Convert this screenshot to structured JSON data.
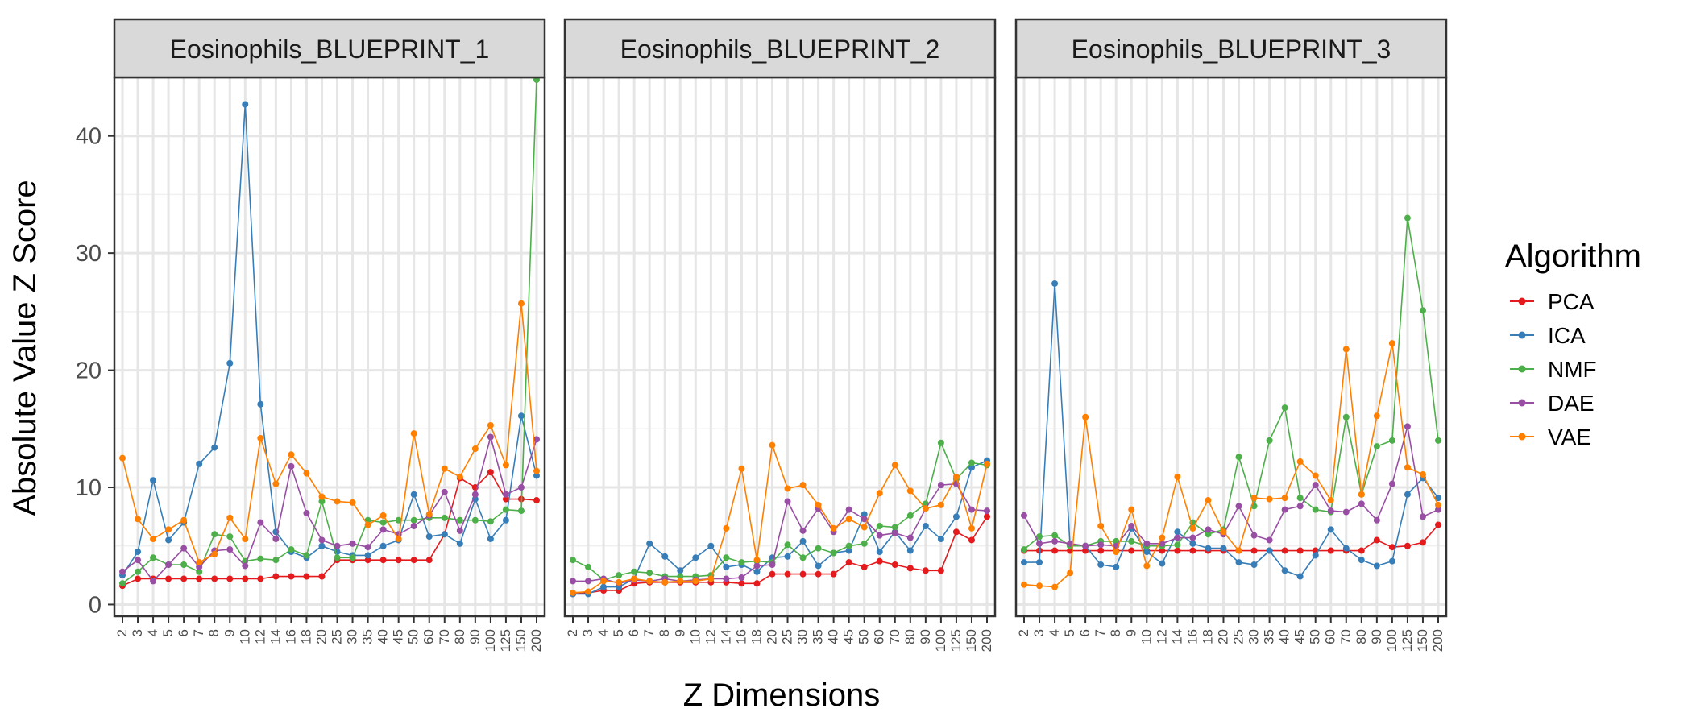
{
  "chart_data": {
    "type": "line",
    "xlabel": "Z Dimensions",
    "ylabel": "Absolute Value Z Score",
    "ylim": [
      -1,
      45
    ],
    "yticks": [
      0,
      10,
      20,
      30,
      40
    ],
    "grid": true,
    "legend_position": "right",
    "legend_title": "Algorithm",
    "categories": [
      "2",
      "3",
      "4",
      "5",
      "6",
      "7",
      "8",
      "9",
      "10",
      "12",
      "14",
      "16",
      "18",
      "20",
      "25",
      "30",
      "35",
      "40",
      "45",
      "50",
      "60",
      "70",
      "80",
      "90",
      "100",
      "125",
      "150",
      "200"
    ],
    "colors": {
      "PCA": "#e41a1c",
      "ICA": "#377eb8",
      "NMF": "#4daf4a",
      "DAE": "#984ea3",
      "VAE": "#ff7f00"
    },
    "panels": [
      {
        "title": "Eosinophils_BLUEPRINT_1",
        "series": [
          {
            "name": "PCA",
            "values": [
              1.6,
              2.2,
              2.2,
              2.2,
              2.2,
              2.2,
              2.2,
              2.2,
              2.2,
              2.2,
              2.4,
              2.4,
              2.4,
              2.4,
              3.8,
              3.8,
              3.8,
              3.8,
              3.8,
              3.8,
              3.8,
              6.0,
              10.8,
              10.0,
              11.3,
              9.0,
              9.0,
              8.9
            ]
          },
          {
            "name": "ICA",
            "values": [
              2.5,
              4.5,
              10.6,
              5.5,
              7.0,
              12.0,
              13.4,
              20.6,
              42.7,
              17.1,
              6.2,
              4.5,
              4.0,
              5.0,
              4.5,
              4.2,
              4.2,
              5.0,
              5.5,
              9.4,
              5.8,
              6.0,
              5.2,
              9.0,
              5.6,
              7.2,
              16.1,
              11.0
            ]
          },
          {
            "name": "NMF",
            "values": [
              1.8,
              2.8,
              4.0,
              3.4,
              3.4,
              2.8,
              6.0,
              5.8,
              3.7,
              3.9,
              3.8,
              4.7,
              4.2,
              8.8,
              4.0,
              4.0,
              7.2,
              7.0,
              7.2,
              7.2,
              7.4,
              7.4,
              7.2,
              7.2,
              7.1,
              8.1,
              8.0,
              44.8
            ]
          },
          {
            "name": "DAE",
            "values": [
              2.8,
              3.8,
              2.0,
              3.4,
              4.8,
              3.2,
              4.6,
              4.7,
              3.3,
              7.0,
              5.6,
              11.8,
              7.8,
              5.5,
              5.0,
              5.2,
              4.9,
              6.4,
              6.0,
              6.7,
              7.6,
              9.6,
              6.3,
              9.4,
              14.3,
              9.4,
              10.0,
              14.1
            ]
          },
          {
            "name": "VAE",
            "values": [
              12.5,
              7.3,
              5.6,
              6.4,
              7.2,
              3.6,
              4.3,
              7.4,
              5.6,
              14.2,
              10.3,
              12.8,
              11.2,
              9.2,
              8.8,
              8.7,
              6.8,
              7.6,
              5.6,
              14.6,
              7.7,
              11.6,
              10.9,
              13.3,
              15.3,
              11.9,
              25.7,
              11.4
            ]
          }
        ]
      },
      {
        "title": "Eosinophils_BLUEPRINT_2",
        "series": [
          {
            "name": "PCA",
            "values": [
              0.9,
              1.0,
              1.2,
              1.2,
              1.8,
              1.9,
              1.9,
              1.9,
              1.9,
              1.9,
              1.9,
              1.8,
              1.8,
              2.6,
              2.6,
              2.6,
              2.6,
              2.6,
              3.6,
              3.2,
              3.7,
              3.4,
              3.1,
              2.9,
              2.9,
              6.2,
              5.5,
              7.5
            ]
          },
          {
            "name": "ICA",
            "values": [
              0.9,
              0.9,
              1.5,
              1.5,
              2.2,
              5.2,
              4.1,
              2.9,
              4.0,
              5.0,
              3.2,
              3.4,
              2.8,
              4.0,
              4.1,
              5.4,
              3.3,
              4.4,
              4.6,
              7.7,
              4.5,
              6.2,
              4.6,
              6.7,
              5.6,
              7.5,
              11.7,
              12.3
            ]
          },
          {
            "name": "NMF",
            "values": [
              3.8,
              3.2,
              2.1,
              2.5,
              2.8,
              2.7,
              2.4,
              2.4,
              2.4,
              2.5,
              4.0,
              3.6,
              3.7,
              3.6,
              5.1,
              4.0,
              4.8,
              4.4,
              5.0,
              5.2,
              6.7,
              6.6,
              7.6,
              8.6,
              13.8,
              10.7,
              12.1,
              11.9
            ]
          },
          {
            "name": "DAE",
            "values": [
              2.0,
              2.0,
              2.2,
              1.8,
              2.1,
              2.0,
              2.2,
              2.0,
              2.1,
              2.2,
              2.2,
              2.3,
              3.3,
              3.4,
              8.8,
              6.3,
              8.2,
              6.2,
              8.1,
              7.3,
              5.9,
              6.1,
              5.7,
              8.2,
              10.2,
              10.3,
              8.1,
              8.0
            ]
          },
          {
            "name": "VAE",
            "values": [
              1.0,
              1.1,
              2.0,
              1.9,
              2.2,
              2.0,
              1.9,
              2.0,
              2.0,
              2.2,
              6.5,
              11.6,
              3.8,
              13.6,
              9.9,
              10.2,
              8.5,
              6.5,
              7.3,
              6.6,
              9.5,
              11.9,
              9.7,
              8.2,
              8.5,
              10.9,
              6.5,
              12.0
            ]
          }
        ]
      },
      {
        "title": "Eosinophils_BLUEPRINT_3",
        "series": [
          {
            "name": "PCA",
            "values": [
              4.6,
              4.6,
              4.6,
              4.6,
              4.6,
              4.6,
              4.6,
              4.6,
              4.6,
              4.6,
              4.6,
              4.6,
              4.6,
              4.6,
              4.6,
              4.6,
              4.6,
              4.6,
              4.6,
              4.6,
              4.6,
              4.6,
              4.6,
              5.5,
              4.9,
              5.0,
              5.3,
              6.8
            ]
          },
          {
            "name": "ICA",
            "values": [
              3.6,
              3.6,
              27.4,
              5.0,
              5.0,
              3.4,
              3.2,
              6.5,
              4.5,
              3.5,
              6.2,
              5.2,
              4.8,
              4.8,
              3.6,
              3.4,
              4.6,
              2.9,
              2.4,
              4.2,
              6.4,
              4.8,
              3.8,
              3.3,
              3.7,
              9.4,
              10.8,
              9.1
            ]
          },
          {
            "name": "NMF",
            "values": [
              4.7,
              5.8,
              5.9,
              5.0,
              5.0,
              5.4,
              5.4,
              5.4,
              5.0,
              5.0,
              5.1,
              7.0,
              6.0,
              6.4,
              12.6,
              8.4,
              14.0,
              16.8,
              9.1,
              8.1,
              7.9,
              16.0,
              9.4,
              13.5,
              14.0,
              33.0,
              25.1,
              14.0
            ]
          },
          {
            "name": "DAE",
            "values": [
              7.6,
              5.2,
              5.4,
              5.2,
              5.0,
              5.1,
              5.0,
              6.7,
              5.2,
              5.2,
              5.7,
              5.7,
              6.4,
              6.0,
              8.4,
              5.9,
              5.5,
              8.1,
              8.4,
              10.2,
              8.0,
              7.9,
              8.6,
              7.2,
              10.3,
              15.2,
              7.5,
              8.1
            ]
          },
          {
            "name": "VAE",
            "values": [
              1.7,
              1.6,
              1.5,
              2.7,
              16.0,
              6.7,
              4.5,
              8.1,
              3.3,
              5.7,
              10.9,
              6.5,
              8.9,
              6.2,
              4.6,
              9.1,
              9.0,
              9.1,
              12.2,
              11.0,
              8.9,
              21.8,
              9.4,
              16.1,
              22.3,
              11.7,
              11.1,
              8.5
            ]
          }
        ]
      }
    ]
  }
}
